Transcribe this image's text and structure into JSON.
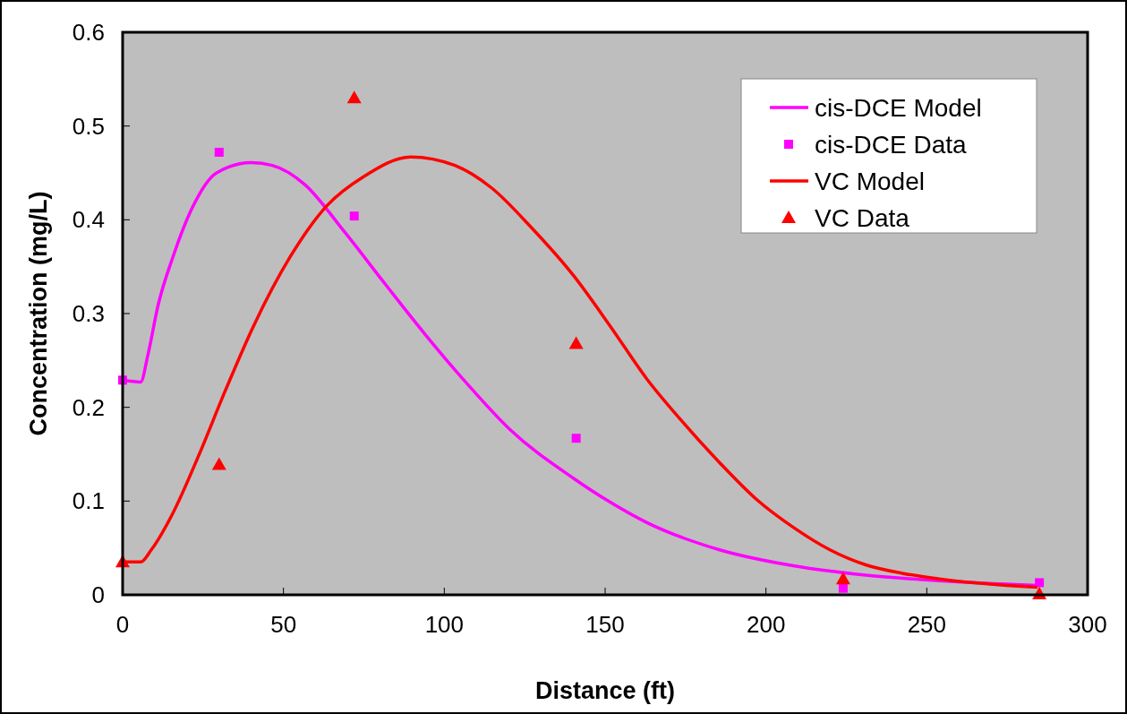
{
  "chart_data": {
    "type": "line",
    "xlabel": "Distance (ft)",
    "ylabel": "Concentration (mg/L)",
    "xlim": [
      0,
      300
    ],
    "xticks": [
      0,
      50,
      100,
      150,
      200,
      250,
      300
    ],
    "ylim": [
      0,
      0.6
    ],
    "yticks": [
      0,
      0.1,
      0.2,
      0.3,
      0.4,
      0.5,
      0.6
    ],
    "grid": false,
    "legend": "top right",
    "series": [
      {
        "name": "cis-DCE Model",
        "color": "#ff00ff",
        "marker": "none",
        "line_style": "solid",
        "x": [
          0,
          5.6,
          7.8,
          11.1,
          15.6,
          21.4,
          29.2,
          40,
          46.5,
          56.5,
          69,
          81.5,
          94,
          106.6,
          120.2,
          140.3,
          151,
          163,
          185.6,
          208.5,
          231,
          253.8,
          284.4
        ],
        "values": [
          0.229,
          0.227,
          0.255,
          0.31,
          0.36,
          0.411,
          0.45,
          0.461,
          0.458,
          0.438,
          0.387,
          0.332,
          0.278,
          0.227,
          0.177,
          0.124,
          0.1,
          0.077,
          0.048,
          0.031,
          0.021,
          0.015,
          0.01
        ]
      },
      {
        "name": "cis-DCE Data",
        "type": "scatter",
        "color": "#ff00ff",
        "marker": "square",
        "x": [
          0,
          30,
          72,
          141,
          224,
          285
        ],
        "values": [
          0.229,
          0.472,
          0.404,
          0.167,
          0.007,
          0.013
        ]
      },
      {
        "name": "VC Model",
        "color": "#ff0000",
        "marker": "none",
        "line_style": "solid",
        "x": [
          0,
          5.6,
          8.9,
          15.6,
          23.7,
          31.7,
          40.6,
          52,
          63.5,
          74.9,
          89.6,
          103.3,
          114.7,
          127,
          140.3,
          151.7,
          162.8,
          174.2,
          185.6,
          197,
          208.5,
          219.9,
          231,
          242.4,
          253.8,
          284.4
        ],
        "values": [
          0.035,
          0.035,
          0.048,
          0.087,
          0.149,
          0.216,
          0.286,
          0.36,
          0.415,
          0.446,
          0.467,
          0.458,
          0.434,
          0.392,
          0.34,
          0.286,
          0.231,
          0.184,
          0.141,
          0.102,
          0.072,
          0.048,
          0.032,
          0.023,
          0.017,
          0.008
        ]
      },
      {
        "name": "VC Data",
        "type": "scatter",
        "color": "#ff0000",
        "marker": "triangle",
        "x": [
          0,
          30,
          72,
          141,
          224,
          285
        ],
        "values": [
          0.035,
          0.139,
          0.53,
          0.268,
          0.017,
          0.001
        ]
      }
    ]
  }
}
